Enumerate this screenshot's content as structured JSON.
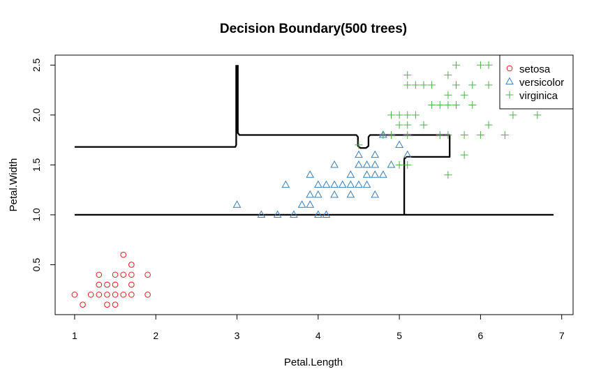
{
  "chart_data": {
    "type": "scatter",
    "title": "Decision Boundary(500 trees)",
    "xlabel": "Petal.Length",
    "ylabel": "Petal.Width",
    "xlim": [
      0.76,
      7.14
    ],
    "ylim": [
      -0.0,
      2.6
    ],
    "x_ticks": [
      1,
      2,
      3,
      4,
      5,
      6,
      7
    ],
    "y_ticks": [
      0.5,
      1.0,
      1.5,
      2.0,
      2.5
    ],
    "y_tick_labels": [
      "0.5",
      "1.0",
      "1.5",
      "2.0",
      "2.5"
    ],
    "grid": false,
    "legend_position": "top-right",
    "series": [
      {
        "name": "setosa",
        "marker": "circle",
        "color": "#e41a1c",
        "points": [
          [
            1.0,
            0.2
          ],
          [
            1.1,
            0.1
          ],
          [
            1.2,
            0.2
          ],
          [
            1.3,
            0.2
          ],
          [
            1.3,
            0.3
          ],
          [
            1.3,
            0.4
          ],
          [
            1.4,
            0.1
          ],
          [
            1.4,
            0.2
          ],
          [
            1.4,
            0.3
          ],
          [
            1.5,
            0.1
          ],
          [
            1.5,
            0.2
          ],
          [
            1.5,
            0.3
          ],
          [
            1.5,
            0.4
          ],
          [
            1.6,
            0.2
          ],
          [
            1.6,
            0.4
          ],
          [
            1.6,
            0.6
          ],
          [
            1.7,
            0.2
          ],
          [
            1.7,
            0.3
          ],
          [
            1.7,
            0.4
          ],
          [
            1.7,
            0.5
          ],
          [
            1.9,
            0.2
          ],
          [
            1.9,
            0.4
          ]
        ]
      },
      {
        "name": "versicolor",
        "marker": "triangle",
        "color": "#377eb8",
        "points": [
          [
            3.0,
            1.1
          ],
          [
            3.3,
            1.0
          ],
          [
            3.5,
            1.0
          ],
          [
            3.6,
            1.3
          ],
          [
            3.7,
            1.0
          ],
          [
            3.8,
            1.1
          ],
          [
            3.9,
            1.1
          ],
          [
            3.9,
            1.2
          ],
          [
            3.9,
            1.4
          ],
          [
            4.0,
            1.0
          ],
          [
            4.0,
            1.2
          ],
          [
            4.0,
            1.3
          ],
          [
            4.1,
            1.0
          ],
          [
            4.1,
            1.3
          ],
          [
            4.2,
            1.2
          ],
          [
            4.2,
            1.3
          ],
          [
            4.2,
            1.5
          ],
          [
            4.3,
            1.3
          ],
          [
            4.4,
            1.2
          ],
          [
            4.4,
            1.3
          ],
          [
            4.4,
            1.4
          ],
          [
            4.5,
            1.3
          ],
          [
            4.5,
            1.5
          ],
          [
            4.5,
            1.6
          ],
          [
            4.6,
            1.3
          ],
          [
            4.6,
            1.4
          ],
          [
            4.6,
            1.5
          ],
          [
            4.7,
            1.2
          ],
          [
            4.7,
            1.4
          ],
          [
            4.7,
            1.5
          ],
          [
            4.7,
            1.6
          ],
          [
            4.8,
            1.4
          ],
          [
            4.8,
            1.8
          ],
          [
            4.9,
            1.5
          ],
          [
            5.0,
            1.7
          ],
          [
            5.1,
            1.6
          ]
        ]
      },
      {
        "name": "virginica",
        "marker": "plus",
        "color": "#4daf4a",
        "points": [
          [
            4.5,
            1.7
          ],
          [
            4.8,
            1.8
          ],
          [
            4.9,
            1.8
          ],
          [
            4.9,
            2.0
          ],
          [
            5.0,
            1.5
          ],
          [
            5.0,
            1.9
          ],
          [
            5.0,
            2.0
          ],
          [
            5.1,
            1.5
          ],
          [
            5.1,
            1.8
          ],
          [
            5.1,
            1.9
          ],
          [
            5.1,
            2.0
          ],
          [
            5.1,
            2.3
          ],
          [
            5.1,
            2.4
          ],
          [
            5.2,
            2.0
          ],
          [
            5.2,
            2.3
          ],
          [
            5.3,
            1.9
          ],
          [
            5.3,
            2.3
          ],
          [
            5.4,
            2.1
          ],
          [
            5.4,
            2.3
          ],
          [
            5.5,
            1.8
          ],
          [
            5.5,
            2.1
          ],
          [
            5.6,
            1.4
          ],
          [
            5.6,
            1.8
          ],
          [
            5.6,
            2.1
          ],
          [
            5.6,
            2.2
          ],
          [
            5.6,
            2.4
          ],
          [
            5.7,
            2.1
          ],
          [
            5.7,
            2.3
          ],
          [
            5.7,
            2.5
          ],
          [
            5.8,
            1.6
          ],
          [
            5.8,
            1.8
          ],
          [
            5.8,
            2.2
          ],
          [
            5.9,
            2.1
          ],
          [
            5.9,
            2.3
          ],
          [
            6.0,
            1.8
          ],
          [
            6.0,
            2.5
          ],
          [
            6.1,
            1.9
          ],
          [
            6.1,
            2.3
          ],
          [
            6.1,
            2.5
          ],
          [
            6.3,
            1.8
          ],
          [
            6.4,
            2.0
          ],
          [
            6.7,
            2.0
          ]
        ]
      }
    ],
    "boundaries": [
      {
        "name": "boundary-1",
        "points": [
          [
            1.0,
            1.0
          ],
          [
            5.09,
            1.0
          ],
          [
            5.1,
            1.0
          ],
          [
            6.9,
            1.0
          ]
        ]
      },
      {
        "name": "boundary-2",
        "points": [
          [
            1.0,
            1.68
          ],
          [
            2.98,
            1.68
          ],
          [
            2.99,
            1.7
          ],
          [
            2.99,
            2.5
          ]
        ]
      },
      {
        "name": "boundary-3",
        "points": [
          [
            3.01,
            2.5
          ],
          [
            3.01,
            1.82
          ],
          [
            3.03,
            1.8
          ],
          [
            4.47,
            1.8
          ],
          [
            4.49,
            1.78
          ],
          [
            4.49,
            1.69
          ],
          [
            4.52,
            1.67
          ],
          [
            4.59,
            1.67
          ],
          [
            4.62,
            1.69
          ],
          [
            4.62,
            1.78
          ],
          [
            4.64,
            1.8
          ],
          [
            5.62,
            1.8
          ],
          [
            5.62,
            1.58
          ],
          [
            5.09,
            1.58
          ],
          [
            5.06,
            1.56
          ],
          [
            5.06,
            1.4
          ],
          [
            5.06,
            1.0
          ],
          [
            5.09,
            1.0
          ]
        ]
      }
    ]
  }
}
